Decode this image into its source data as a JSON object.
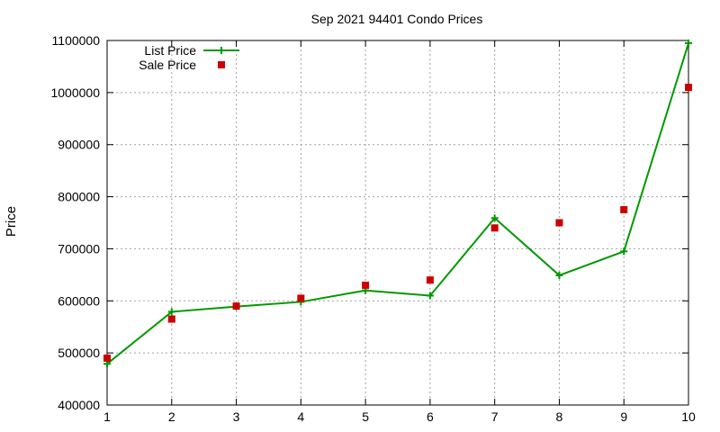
{
  "chart_data": {
    "type": "line",
    "title": "Sep 2021 94401 Condo Prices",
    "xlabel": "",
    "ylabel": "Price",
    "x": [
      1,
      2,
      3,
      4,
      5,
      6,
      7,
      8,
      9,
      10
    ],
    "xlim": [
      1,
      10
    ],
    "ylim": [
      400000,
      1100000
    ],
    "yticks": [
      400000,
      500000,
      600000,
      700000,
      800000,
      900000,
      1000000,
      1100000
    ],
    "grid": true,
    "legend_position": "top-left",
    "series": [
      {
        "name": "List Price",
        "style": "line-with-plus-markers",
        "color": "#009900",
        "values": [
          479000,
          579000,
          589000,
          598000,
          620000,
          610000,
          759000,
          649000,
          695000,
          1095000
        ]
      },
      {
        "name": "Sale Price",
        "style": "square-markers",
        "color": "#cc0000",
        "values": [
          490000,
          565000,
          590000,
          605000,
          630000,
          640000,
          740000,
          750000,
          775000,
          1010000
        ]
      }
    ]
  }
}
